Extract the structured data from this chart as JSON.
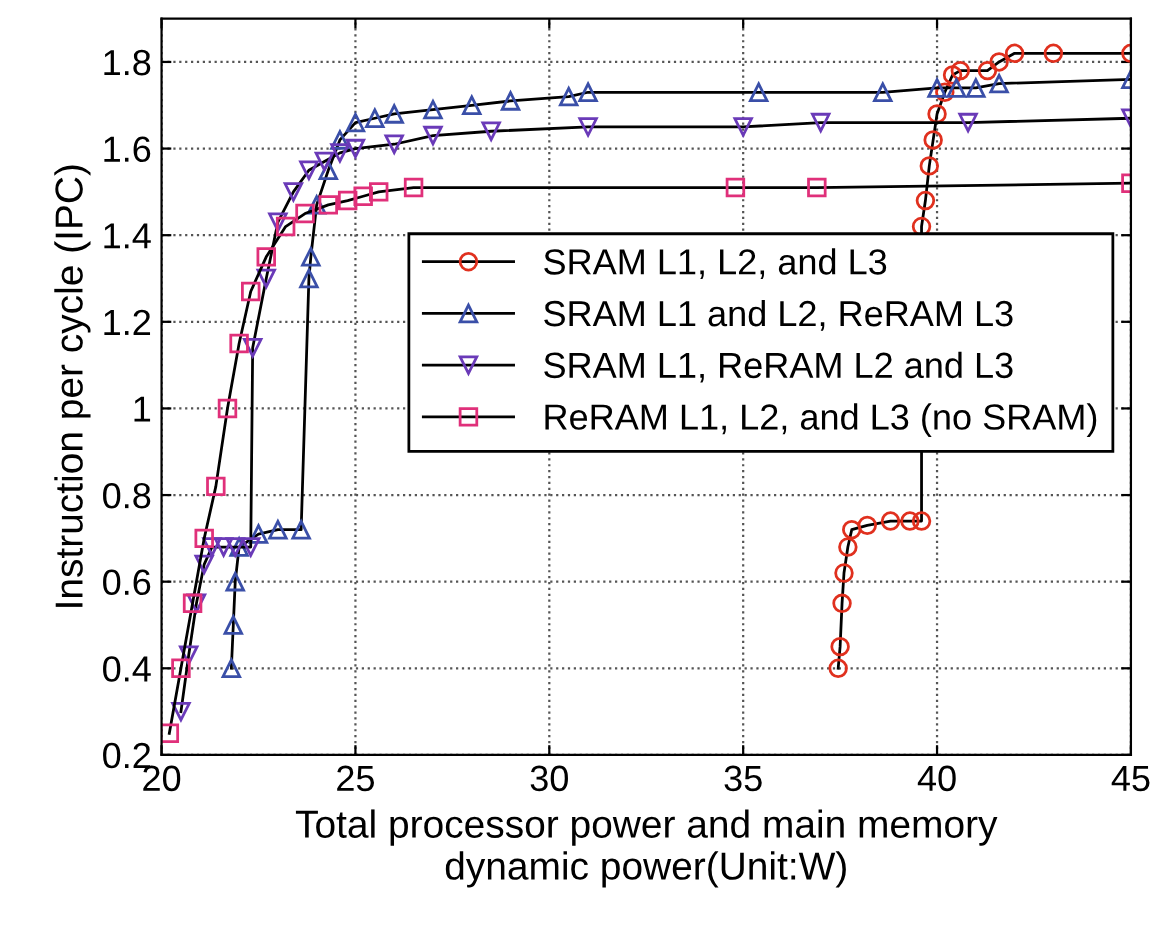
{
  "chart_data": {
    "type": "line",
    "xlabel": "Total processor power and main memory\ndynamic power(Unit:W)",
    "ylabel": "Instruction per cycle (IPC)",
    "xlim": [
      20,
      45
    ],
    "ylim": [
      0.2,
      1.9
    ],
    "xticks": [
      20,
      25,
      30,
      35,
      40,
      45
    ],
    "yticks": [
      0.2,
      0.4,
      0.6,
      0.8,
      1,
      1.2,
      1.4,
      1.6,
      1.8
    ],
    "grid": true,
    "legend": "right",
    "line_style": "solid",
    "series": [
      {
        "name": "SRAM L1, L2, and L3",
        "color": "#e0301e",
        "marker": "circle",
        "x": [
          37.45,
          37.5,
          37.55,
          37.6,
          37.7,
          37.8,
          38.2,
          38.8,
          39.3,
          39.6,
          39.6,
          39.7,
          39.8,
          39.9,
          40.0,
          40.2,
          40.4,
          40.6,
          41.3,
          41.6,
          42.0,
          43.0,
          45.0
        ],
        "values": [
          0.4,
          0.45,
          0.55,
          0.62,
          0.68,
          0.72,
          0.73,
          0.74,
          0.74,
          0.74,
          1.42,
          1.48,
          1.56,
          1.62,
          1.68,
          1.73,
          1.77,
          1.78,
          1.78,
          1.8,
          1.82,
          1.82,
          1.82
        ]
      },
      {
        "name": "SRAM L1 and L2, ReRAM L3",
        "color": "#3a4fa8",
        "marker": "triangle",
        "x": [
          21.8,
          21.85,
          21.9,
          22.0,
          22.5,
          23.0,
          23.6,
          23.8,
          23.85,
          24.0,
          24.3,
          24.6,
          25.0,
          25.5,
          26.0,
          27.0,
          28.0,
          29.0,
          30.5,
          31.0,
          35.4,
          38.6,
          40.0,
          40.5,
          41.0,
          41.6,
          45.0
        ],
        "values": [
          0.4,
          0.5,
          0.6,
          0.68,
          0.71,
          0.72,
          0.72,
          1.3,
          1.35,
          1.47,
          1.55,
          1.62,
          1.66,
          1.67,
          1.68,
          1.69,
          1.7,
          1.71,
          1.72,
          1.73,
          1.73,
          1.73,
          1.74,
          1.74,
          1.74,
          1.75,
          1.76
        ]
      },
      {
        "name": "SRAM L1, ReRAM L2 and L3",
        "color": "#6a3ab8",
        "marker": "triangle_down",
        "x": [
          20.5,
          20.7,
          20.9,
          21.1,
          21.3,
          21.6,
          21.9,
          22.3,
          22.35,
          22.7,
          23.0,
          23.4,
          23.8,
          24.2,
          24.6,
          25.0,
          26.0,
          27.0,
          28.5,
          31.0,
          35.0,
          37.0,
          40.8,
          45.0
        ],
        "values": [
          0.3,
          0.43,
          0.55,
          0.64,
          0.68,
          0.68,
          0.68,
          0.68,
          1.14,
          1.3,
          1.43,
          1.5,
          1.55,
          1.57,
          1.59,
          1.6,
          1.61,
          1.63,
          1.64,
          1.65,
          1.65,
          1.66,
          1.66,
          1.67
        ]
      },
      {
        "name": "ReRAM L1, L2, and L3 (no SRAM)",
        "color": "#e0307a",
        "marker": "square",
        "x": [
          20.2,
          20.5,
          20.8,
          21.1,
          21.4,
          21.7,
          22.0,
          22.3,
          22.7,
          23.2,
          23.7,
          24.3,
          24.8,
          25.2,
          25.6,
          26.5,
          34.8,
          36.9,
          45.0
        ],
        "values": [
          0.25,
          0.4,
          0.55,
          0.7,
          0.82,
          1.0,
          1.15,
          1.27,
          1.35,
          1.42,
          1.45,
          1.47,
          1.48,
          1.49,
          1.5,
          1.51,
          1.51,
          1.51,
          1.52
        ]
      }
    ]
  }
}
